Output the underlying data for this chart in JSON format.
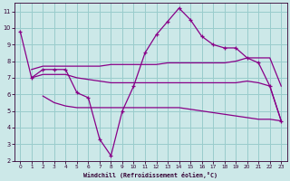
{
  "xlabel": "Windchill (Refroidissement éolien,°C)",
  "bg_color": "#cce8e8",
  "line_color": "#880088",
  "grid_color": "#99cccc",
  "xlim": [
    -0.5,
    23.5
  ],
  "ylim": [
    2,
    11.5
  ],
  "xticks": [
    0,
    1,
    2,
    3,
    4,
    5,
    6,
    7,
    8,
    9,
    10,
    11,
    12,
    13,
    14,
    15,
    16,
    17,
    18,
    19,
    20,
    21,
    22,
    23
  ],
  "yticks": [
    2,
    3,
    4,
    5,
    6,
    7,
    8,
    9,
    10,
    11
  ],
  "line1_x": [
    0,
    1,
    2,
    3,
    4,
    5,
    6,
    7,
    8,
    9,
    10,
    11,
    12,
    13,
    14,
    15,
    16,
    17,
    18,
    19,
    20,
    21,
    22,
    23
  ],
  "line1_y": [
    9.8,
    7.0,
    7.5,
    7.5,
    7.5,
    6.1,
    5.8,
    3.3,
    2.3,
    5.0,
    6.5,
    8.5,
    9.6,
    10.4,
    11.2,
    10.5,
    9.5,
    9.0,
    8.8,
    8.8,
    8.2,
    7.9,
    6.5,
    4.4
  ],
  "line2_x": [
    1,
    2,
    3,
    4,
    5,
    6,
    7,
    8,
    9,
    10,
    11,
    12,
    13,
    14,
    15,
    16,
    17,
    18,
    19,
    20,
    21,
    22,
    23
  ],
  "line2_y": [
    7.5,
    7.7,
    7.7,
    7.7,
    7.7,
    7.7,
    7.7,
    7.8,
    7.8,
    7.8,
    7.8,
    7.8,
    7.9,
    7.9,
    7.9,
    7.9,
    7.9,
    7.9,
    8.0,
    8.2,
    8.2,
    8.2,
    6.5
  ],
  "line3_x": [
    1,
    2,
    3,
    4,
    5,
    6,
    7,
    8,
    9,
    10,
    11,
    12,
    13,
    14,
    15,
    16,
    17,
    18,
    19,
    20,
    21,
    22,
    23
  ],
  "line3_y": [
    7.0,
    7.2,
    7.2,
    7.2,
    7.0,
    6.9,
    6.8,
    6.7,
    6.7,
    6.7,
    6.7,
    6.7,
    6.7,
    6.7,
    6.7,
    6.7,
    6.7,
    6.7,
    6.7,
    6.8,
    6.7,
    6.5,
    4.4
  ],
  "line4_x": [
    2,
    3,
    4,
    5,
    6,
    7,
    8,
    9,
    10,
    11,
    12,
    13,
    14,
    15,
    16,
    17,
    18,
    19,
    20,
    21,
    22,
    23
  ],
  "line4_y": [
    5.9,
    5.5,
    5.3,
    5.2,
    5.2,
    5.2,
    5.2,
    5.2,
    5.2,
    5.2,
    5.2,
    5.2,
    5.2,
    5.1,
    5.0,
    4.9,
    4.8,
    4.7,
    4.6,
    4.5,
    4.5,
    4.4
  ]
}
